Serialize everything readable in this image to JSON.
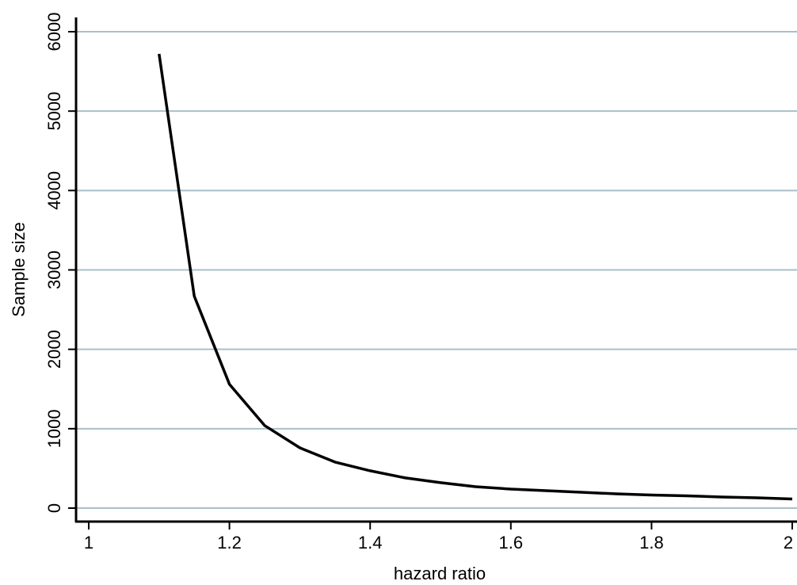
{
  "chart_data": {
    "type": "line",
    "title": "",
    "xlabel": "hazard ratio",
    "ylabel": "Sample size",
    "xlim": [
      1,
      2
    ],
    "ylim": [
      0,
      6000
    ],
    "xticks": [
      1,
      1.2,
      1.4,
      1.6,
      1.8,
      2
    ],
    "xtick_labels": [
      "1",
      "1.2",
      "1.4",
      "1.6",
      "1.8",
      "2"
    ],
    "yticks": [
      0,
      1000,
      2000,
      3000,
      4000,
      5000,
      6000
    ],
    "ytick_labels": [
      "0",
      "1000",
      "2000",
      "3000",
      "4000",
      "5000",
      "6000"
    ],
    "grid": "horizontal",
    "legend": "none",
    "colors": {
      "line": "#000000",
      "grid": "#a9bfc9",
      "axis": "#000000",
      "background": "#ffffff"
    },
    "series": [
      {
        "x": [
          1.1,
          1.15,
          1.2,
          1.25,
          1.3,
          1.35,
          1.4,
          1.45,
          1.5,
          1.55,
          1.6,
          1.65,
          1.7,
          1.75,
          1.8,
          1.85,
          1.9,
          1.95,
          2.0
        ],
        "values": [
          5720,
          2670,
          1560,
          1040,
          760,
          580,
          470,
          380,
          320,
          270,
          240,
          220,
          200,
          180,
          165,
          155,
          140,
          130,
          115
        ]
      }
    ]
  }
}
